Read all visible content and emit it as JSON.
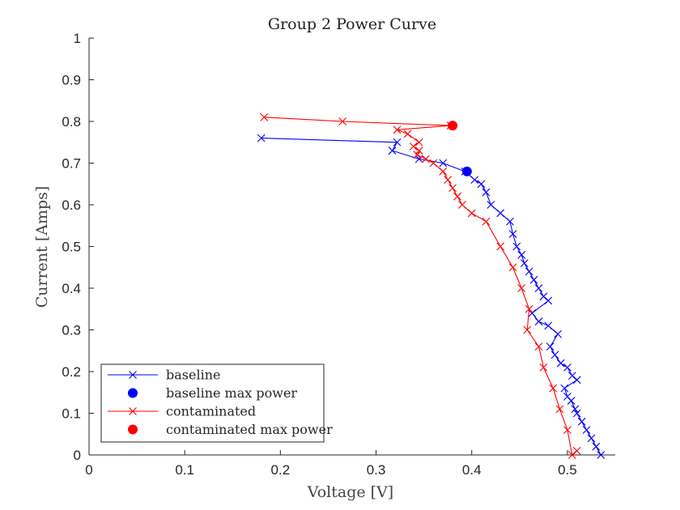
{
  "chart_data": {
    "type": "line",
    "title": "Group 2 Power Curve",
    "xlabel": "Voltage [V]",
    "ylabel": "Current [Amps]",
    "xlim": [
      0,
      0.55
    ],
    "ylim": [
      0,
      1
    ],
    "xticks": [
      0,
      0.1,
      0.2,
      0.3,
      0.4,
      0.5
    ],
    "xtick_labels": [
      "0",
      "0.1",
      "0.2",
      "0.3",
      "0.4",
      "0.5"
    ],
    "yticks": [
      0,
      0.1,
      0.2,
      0.3,
      0.4,
      0.5,
      0.6,
      0.7,
      0.8,
      0.9,
      1
    ],
    "ytick_labels": [
      "0",
      "0.1",
      "0.2",
      "0.3",
      "0.4",
      "0.5",
      "0.6",
      "0.7",
      "0.8",
      "0.9",
      "1"
    ],
    "grid": false,
    "legend_position": "bottom-left",
    "series": [
      {
        "name": "baseline",
        "kind": "line-x",
        "color": "#0000ff",
        "x": [
          0.18,
          0.322,
          0.317,
          0.345,
          0.37,
          0.393,
          0.403,
          0.41,
          0.415,
          0.42,
          0.43,
          0.44,
          0.443,
          0.447,
          0.452,
          0.455,
          0.46,
          0.465,
          0.47,
          0.475,
          0.48,
          0.463,
          0.47,
          0.48,
          0.49,
          0.482,
          0.487,
          0.493,
          0.5,
          0.505,
          0.51,
          0.497,
          0.5,
          0.504,
          0.508,
          0.51,
          0.515,
          0.52,
          0.525,
          0.53,
          0.535
        ],
        "y": [
          0.76,
          0.75,
          0.73,
          0.71,
          0.7,
          0.68,
          0.66,
          0.65,
          0.63,
          0.6,
          0.58,
          0.56,
          0.53,
          0.5,
          0.48,
          0.46,
          0.44,
          0.42,
          0.4,
          0.38,
          0.37,
          0.34,
          0.32,
          0.31,
          0.29,
          0.26,
          0.24,
          0.22,
          0.21,
          0.19,
          0.18,
          0.16,
          0.14,
          0.13,
          0.11,
          0.1,
          0.08,
          0.06,
          0.04,
          0.02,
          0.0
        ]
      },
      {
        "name": "baseline max power",
        "kind": "point",
        "color": "#0000ff",
        "x": [
          0.395
        ],
        "y": [
          0.68
        ]
      },
      {
        "name": "contaminated",
        "kind": "line-x",
        "color": "#ff0000",
        "x": [
          0.183,
          0.265,
          0.378,
          0.322,
          0.333,
          0.345,
          0.339,
          0.345,
          0.343,
          0.352,
          0.36,
          0.37,
          0.375,
          0.38,
          0.385,
          0.39,
          0.4,
          0.415,
          0.43,
          0.443,
          0.452,
          0.46,
          0.458,
          0.47,
          0.475,
          0.485,
          0.492,
          0.5,
          0.505,
          0.51
        ],
        "y": [
          0.81,
          0.8,
          0.79,
          0.78,
          0.77,
          0.75,
          0.74,
          0.73,
          0.72,
          0.71,
          0.7,
          0.68,
          0.66,
          0.64,
          0.62,
          0.6,
          0.58,
          0.56,
          0.5,
          0.45,
          0.4,
          0.35,
          0.3,
          0.26,
          0.21,
          0.16,
          0.11,
          0.06,
          0.0,
          0.01
        ]
      },
      {
        "name": "contaminated max power",
        "kind": "point",
        "color": "#ff0000",
        "x": [
          0.38
        ],
        "y": [
          0.79
        ]
      }
    ]
  }
}
